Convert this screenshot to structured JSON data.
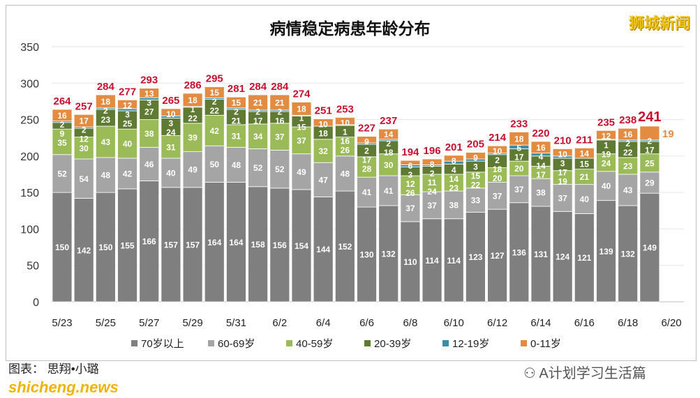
{
  "watermark": "狮城新闻",
  "credit": "图表： 思翔•小璐",
  "site": "shicheng.news",
  "wechat": "A计划学习生活篇",
  "colors": {
    "70+": "#7f7f7f",
    "60-69": "#a5a5a5",
    "40-59": "#9bbb59",
    "20-39": "#5f7a33",
    "12-19": "#3a8ea5",
    "0-11": "#e38b40",
    "total": "#c8102e"
  },
  "chart_data": {
    "type": "bar",
    "stacked": true,
    "title": "病情稳定病患年龄分布",
    "ylim": [
      0,
      350
    ],
    "yticks": [
      0,
      50,
      100,
      150,
      200,
      250,
      300,
      350
    ],
    "grid": true,
    "legend": "bottom",
    "categories": [
      "5/23",
      "5/24",
      "5/25",
      "5/26",
      "5/27",
      "5/28",
      "5/29",
      "5/30",
      "5/31",
      "6/1",
      "6/2",
      "6/3",
      "6/4",
      "6/5",
      "6/6",
      "6/7",
      "6/8",
      "6/9",
      "6/10",
      "6/11",
      "6/12",
      "6/13",
      "6/14",
      "6/15",
      "6/16",
      "6/17",
      "6/18",
      "6/19",
      "6/20"
    ],
    "xtick_labels": [
      "5/23",
      "5/25",
      "5/27",
      "5/29",
      "5/31",
      "6/2",
      "6/4",
      "6/6",
      "6/8",
      "6/10",
      "6/12",
      "6/14",
      "6/16",
      "6/18",
      "6/20"
    ],
    "series": [
      {
        "name": "70岁以上",
        "key": "70+",
        "values": [
          150,
          142,
          150,
          155,
          166,
          157,
          157,
          164,
          164,
          158,
          156,
          154,
          144,
          152,
          130,
          132,
          110,
          114,
          114,
          123,
          127,
          136,
          131,
          124,
          121,
          139,
          132,
          149,
          null
        ]
      },
      {
        "name": "60-69岁",
        "key": "60-69",
        "values": [
          52,
          54,
          48,
          42,
          46,
          40,
          49,
          50,
          48,
          52,
          52,
          49,
          47,
          48,
          41,
          41,
          37,
          37,
          38,
          33,
          37,
          37,
          38,
          37,
          40,
          40,
          43,
          29,
          null
        ]
      },
      {
        "name": "40-59岁",
        "key": "40-59",
        "values": [
          35,
          30,
          43,
          40,
          38,
          31,
          39,
          42,
          31,
          34,
          37,
          37,
          32,
          26,
          28,
          30,
          26,
          24,
          23,
          22,
          20,
          20,
          17,
          19,
          21,
          24,
          23,
          25,
          null
        ]
      },
      {
        "name": "20-39岁",
        "key": "20-39",
        "values": [
          9,
          12,
          23,
          25,
          27,
          24,
          22,
          22,
          21,
          17,
          16,
          15,
          18,
          16,
          17,
          18,
          12,
          11,
          14,
          15,
          18,
          17,
          14,
          17,
          15,
          19,
          22,
          17,
          null
        ]
      },
      {
        "name": "12-19岁",
        "key": "12-19",
        "values": [
          2,
          2,
          2,
          3,
          3,
          3,
          1,
          2,
          2,
          2,
          2,
          1,
          0,
          1,
          2,
          2,
          3,
          2,
          4,
          3,
          2,
          5,
          4,
          3,
          0,
          1,
          2,
          2,
          null
        ]
      },
      {
        "name": "0-11岁",
        "key": "0-11",
        "values": [
          16,
          17,
          18,
          12,
          13,
          10,
          18,
          15,
          15,
          21,
          21,
          18,
          10,
          10,
          9,
          14,
          6,
          8,
          8,
          9,
          10,
          18,
          16,
          10,
          14,
          12,
          16,
          19,
          null
        ]
      }
    ],
    "totals": [
      264,
      257,
      284,
      277,
      293,
      265,
      286,
      295,
      281,
      284,
      284,
      274,
      251,
      253,
      227,
      237,
      194,
      196,
      201,
      205,
      214,
      233,
      220,
      210,
      211,
      235,
      238,
      241,
      null
    ]
  }
}
